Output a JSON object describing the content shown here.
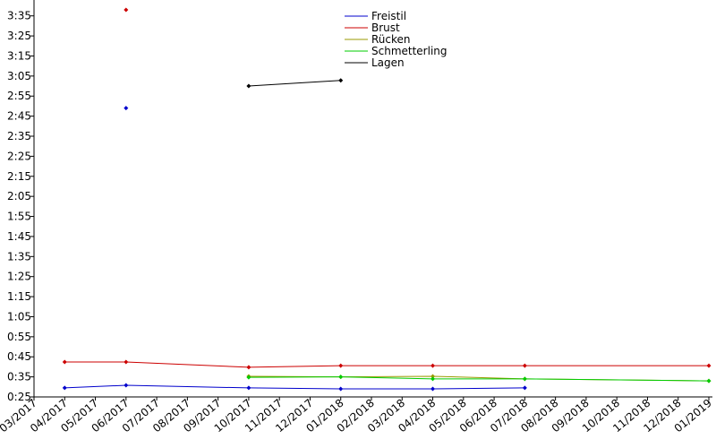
{
  "chart_data": {
    "type": "line",
    "xlim": [
      "03/2017",
      "01/2019"
    ],
    "xticks": [
      "03/2017",
      "04/2017",
      "05/2017",
      "06/2017",
      "07/2017",
      "08/2017",
      "09/2017",
      "10/2017",
      "11/2017",
      "12/2017",
      "01/2018",
      "02/2018",
      "03/2018",
      "04/2018",
      "05/2018",
      "06/2018",
      "07/2018",
      "08/2018",
      "09/2018",
      "10/2018",
      "11/2018",
      "12/2018",
      "01/2019"
    ],
    "ylim": [
      25,
      218
    ],
    "yticks": [
      {
        "value": 25,
        "label": "0:25"
      },
      {
        "value": 35,
        "label": "0:35"
      },
      {
        "value": 45,
        "label": "0:45"
      },
      {
        "value": 55,
        "label": "0:55"
      },
      {
        "value": 65,
        "label": "1:05"
      },
      {
        "value": 75,
        "label": "1:15"
      },
      {
        "value": 85,
        "label": "1:25"
      },
      {
        "value": 95,
        "label": "1:35"
      },
      {
        "value": 105,
        "label": "1:45"
      },
      {
        "value": 115,
        "label": "1:55"
      },
      {
        "value": 125,
        "label": "2:05"
      },
      {
        "value": 135,
        "label": "2:15"
      },
      {
        "value": 145,
        "label": "2:25"
      },
      {
        "value": 155,
        "label": "2:35"
      },
      {
        "value": 165,
        "label": "2:45"
      },
      {
        "value": 175,
        "label": "2:55"
      },
      {
        "value": 185,
        "label": "3:05"
      },
      {
        "value": 195,
        "label": "3:15"
      },
      {
        "value": 205,
        "label": "3:25"
      },
      {
        "value": 215,
        "label": "3:35"
      }
    ],
    "series": [
      {
        "name": "Freistil",
        "color": "#0000cc",
        "x": [
          "04/2017",
          "06/2017",
          "10/2017",
          "01/2018",
          "04/2018",
          "07/2018",
          null,
          "06/2017"
        ],
        "values": [
          29.5,
          30.8,
          29.5,
          29,
          29,
          29.5,
          null,
          169
        ]
      },
      {
        "name": "Brust",
        "color": "#cc0000",
        "x": [
          "04/2017",
          "06/2017",
          "10/2017",
          "01/2018",
          "04/2018",
          "07/2018",
          "01/2019",
          null,
          "06/2017"
        ],
        "values": [
          42.4,
          42.4,
          39.8,
          40.6,
          40.6,
          40.6,
          40.6,
          null,
          218
        ]
      },
      {
        "name": "Rücken",
        "color": "#999900",
        "x": [
          "10/2017",
          "01/2018",
          "04/2018",
          "07/2018",
          "01/2019"
        ],
        "values": [
          35.3,
          35,
          35.3,
          34,
          33
        ]
      },
      {
        "name": "Schmetterling",
        "color": "#00cc00",
        "x": [
          "10/2017",
          "01/2018",
          "04/2018",
          "07/2018",
          "01/2019"
        ],
        "values": [
          34.8,
          35,
          34,
          34,
          33
        ]
      },
      {
        "name": "Lagen",
        "color": "#000000",
        "x": [
          "10/2017",
          "01/2018"
        ],
        "values": [
          180,
          182.8
        ]
      }
    ]
  }
}
